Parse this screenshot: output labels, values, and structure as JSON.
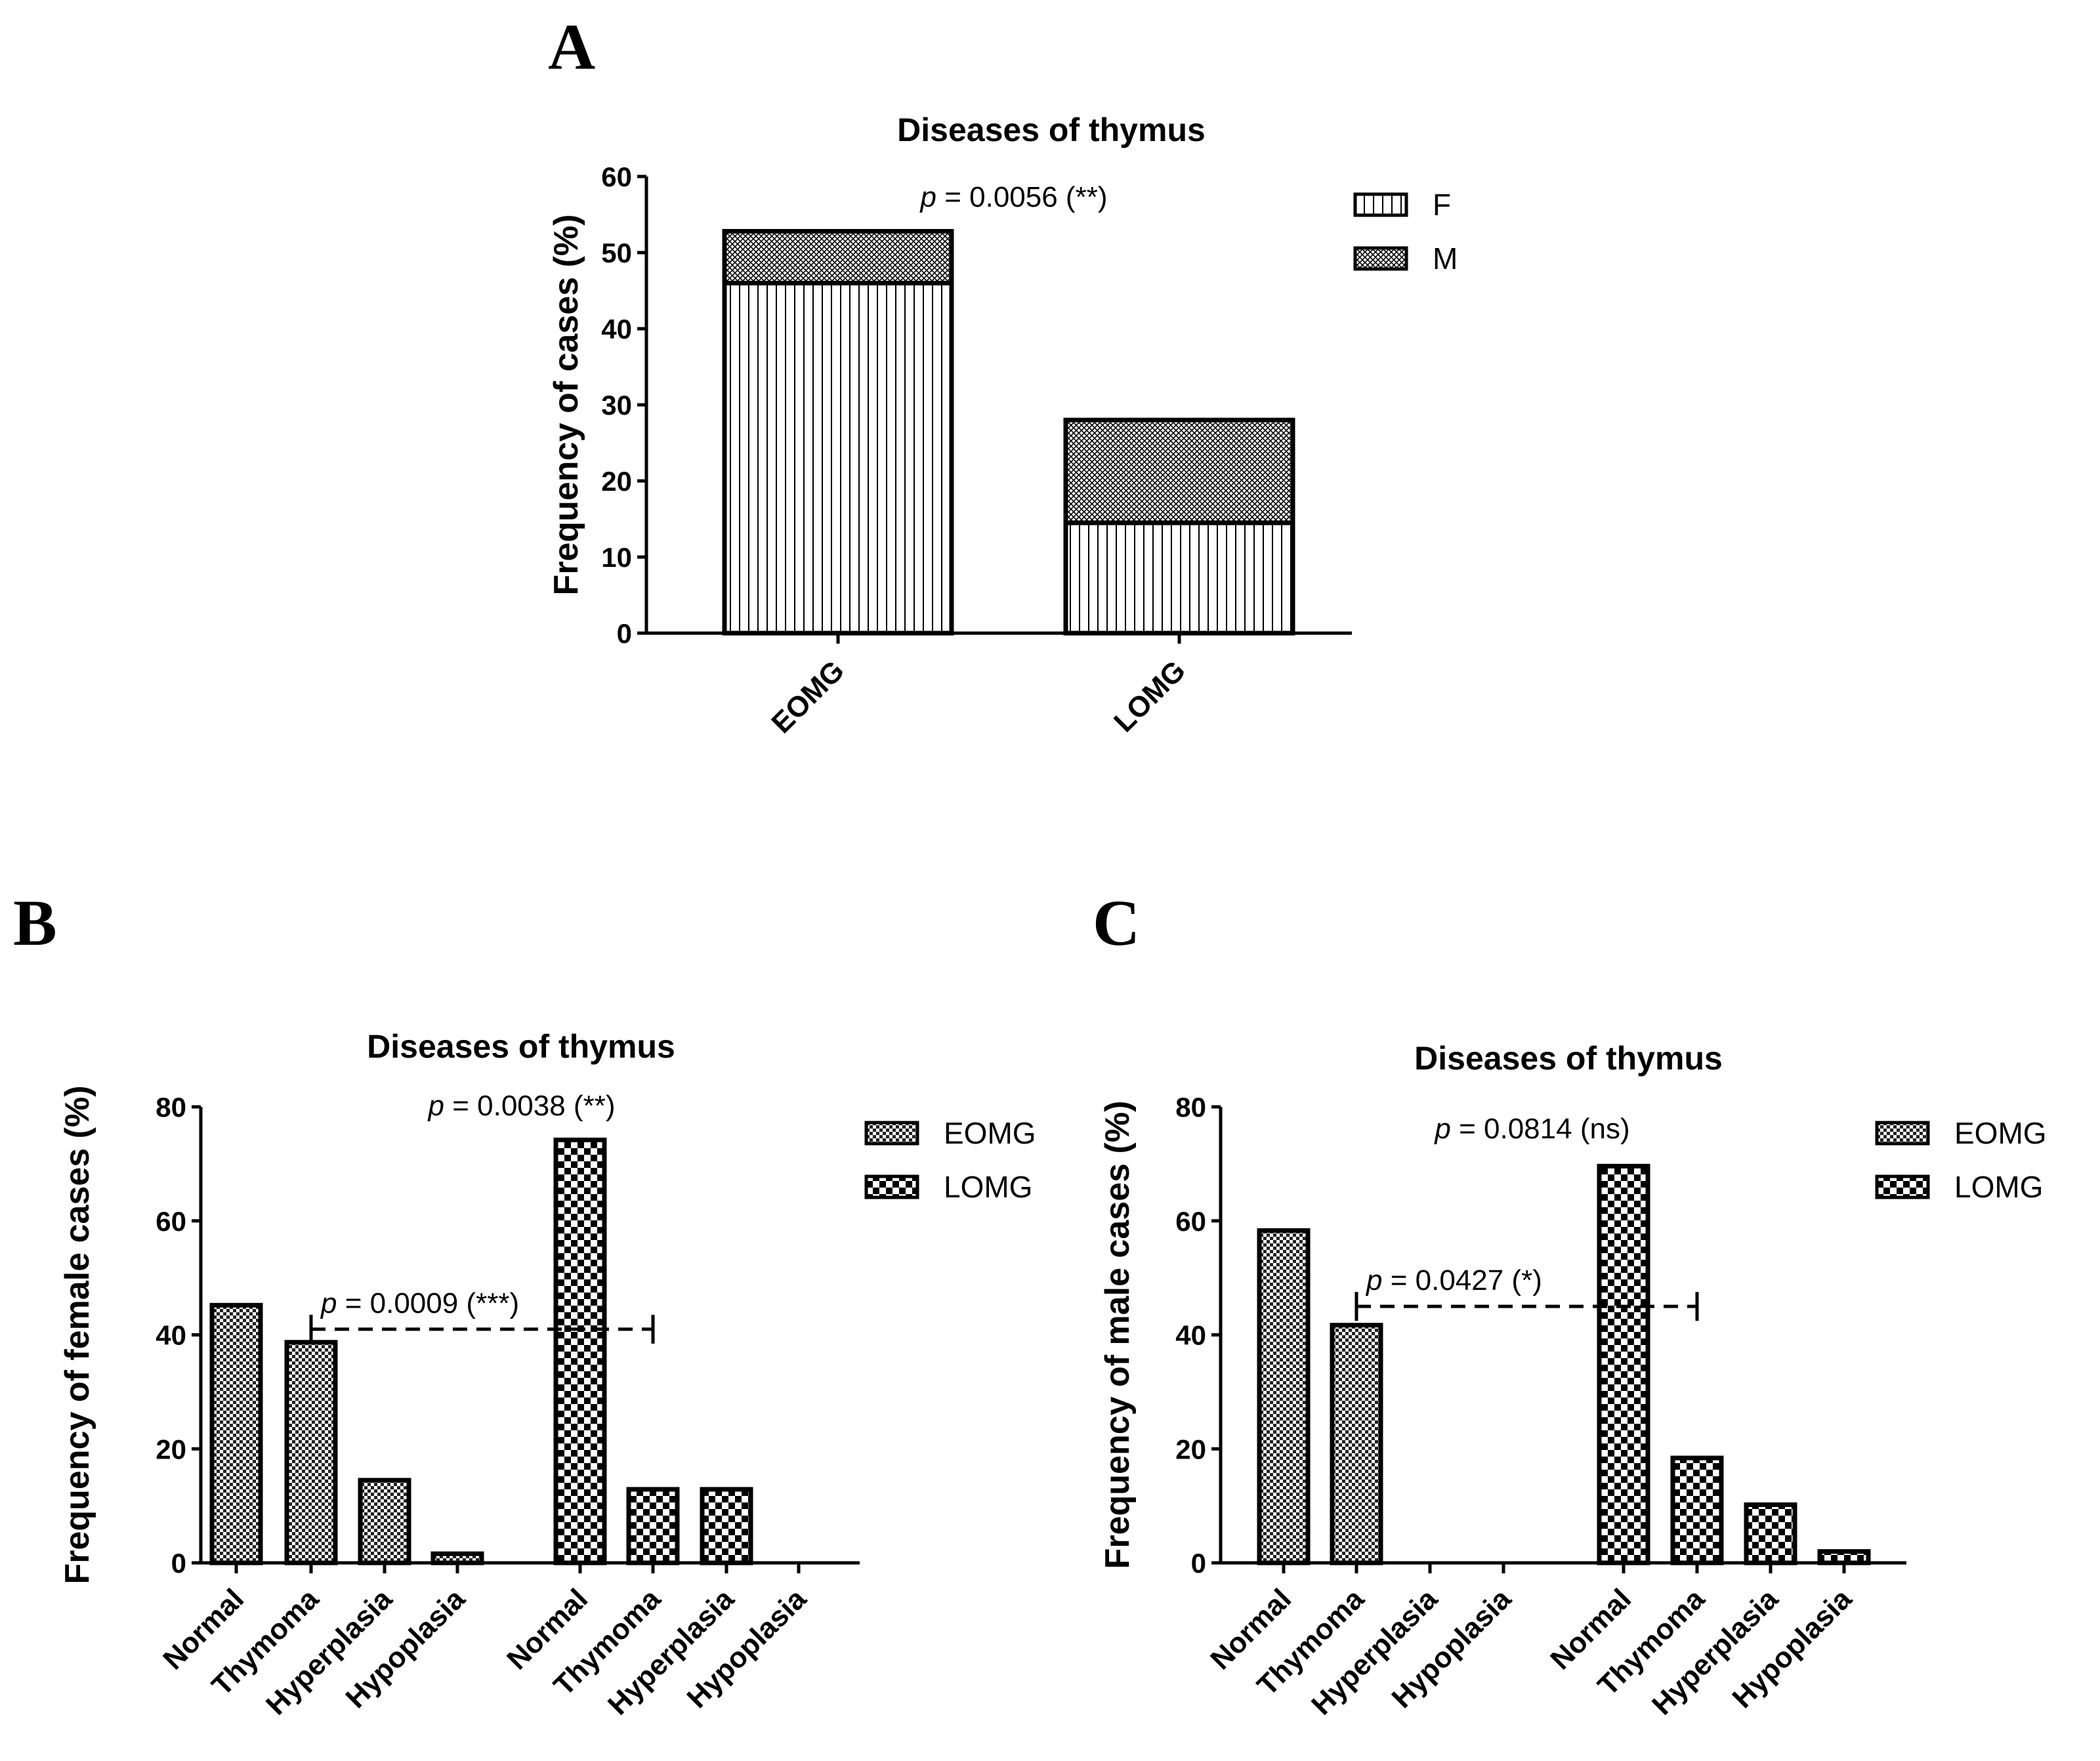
{
  "panel_labels": [
    "A",
    "B",
    "C"
  ],
  "chart_data": [
    {
      "panel": "A",
      "type": "bar",
      "stacked": true,
      "title": "Diseases of thymus",
      "xlabel": "",
      "ylabel": "Frequency of cases (%)",
      "ylim": [
        0,
        60
      ],
      "yticks": [
        0,
        10,
        20,
        30,
        40,
        50,
        60
      ],
      "categories": [
        "EOMG",
        "LOMG"
      ],
      "series": [
        {
          "name": "F",
          "pattern": "vertical-lines",
          "values": [
            46,
            14.5
          ]
        },
        {
          "name": "M",
          "pattern": "crosshatch",
          "values": [
            6.8,
            13.5
          ]
        }
      ],
      "annotation": {
        "italic": "p",
        "text": " = 0.0056 (**)"
      },
      "legend": "top-right"
    },
    {
      "panel": "B",
      "type": "bar",
      "title": "Diseases of thymus",
      "xlabel": "",
      "ylabel": "Frequency of female cases (%)",
      "ylim": [
        0,
        80
      ],
      "yticks": [
        0,
        20,
        40,
        60,
        80
      ],
      "groups": [
        {
          "name": "EOMG",
          "pattern": "fine-check",
          "categories": [
            "Normal",
            "Thymoma",
            "Hyperplasia",
            "Hypoplasia"
          ],
          "values": [
            45.2,
            38.7,
            14.5,
            1.6
          ]
        },
        {
          "name": "LOMG",
          "pattern": "bold-check",
          "categories": [
            "Normal",
            "Thymoma",
            "Hyperplasia",
            "Hypoplasia"
          ],
          "values": [
            74.2,
            12.9,
            12.9,
            0
          ]
        }
      ],
      "annotations": [
        {
          "italic": "p",
          "text": " = 0.0038 (**)"
        },
        {
          "italic": "p",
          "text": " = 0.0009 (***)",
          "compares": [
            "EOMG Thymoma",
            "LOMG Thymoma"
          ],
          "level": 41
        }
      ],
      "legend": "top-right"
    },
    {
      "panel": "C",
      "type": "bar",
      "title": "Diseases of thymus",
      "xlabel": "",
      "ylabel": "Frequency of male cases (%)",
      "ylim": [
        0,
        80
      ],
      "yticks": [
        0,
        20,
        40,
        60,
        80
      ],
      "groups": [
        {
          "name": "EOMG",
          "pattern": "fine-check",
          "categories": [
            "Normal",
            "Thymoma",
            "Hyperplasia",
            "Hypoplasia"
          ],
          "values": [
            58.3,
            41.7,
            0,
            0
          ]
        },
        {
          "name": "LOMG",
          "pattern": "bold-check",
          "categories": [
            "Normal",
            "Thymoma",
            "Hyperplasia",
            "Hypoplasia"
          ],
          "values": [
            69.6,
            18.4,
            10.2,
            2
          ]
        }
      ],
      "annotations": [
        {
          "italic": "p",
          "text": " = 0.0814 (ns)"
        },
        {
          "italic": "p",
          "text": " = 0.0427 (*)",
          "compares": [
            "EOMG Thymoma",
            "LOMG Thymoma"
          ],
          "level": 45
        }
      ],
      "legend": "top-right"
    }
  ]
}
